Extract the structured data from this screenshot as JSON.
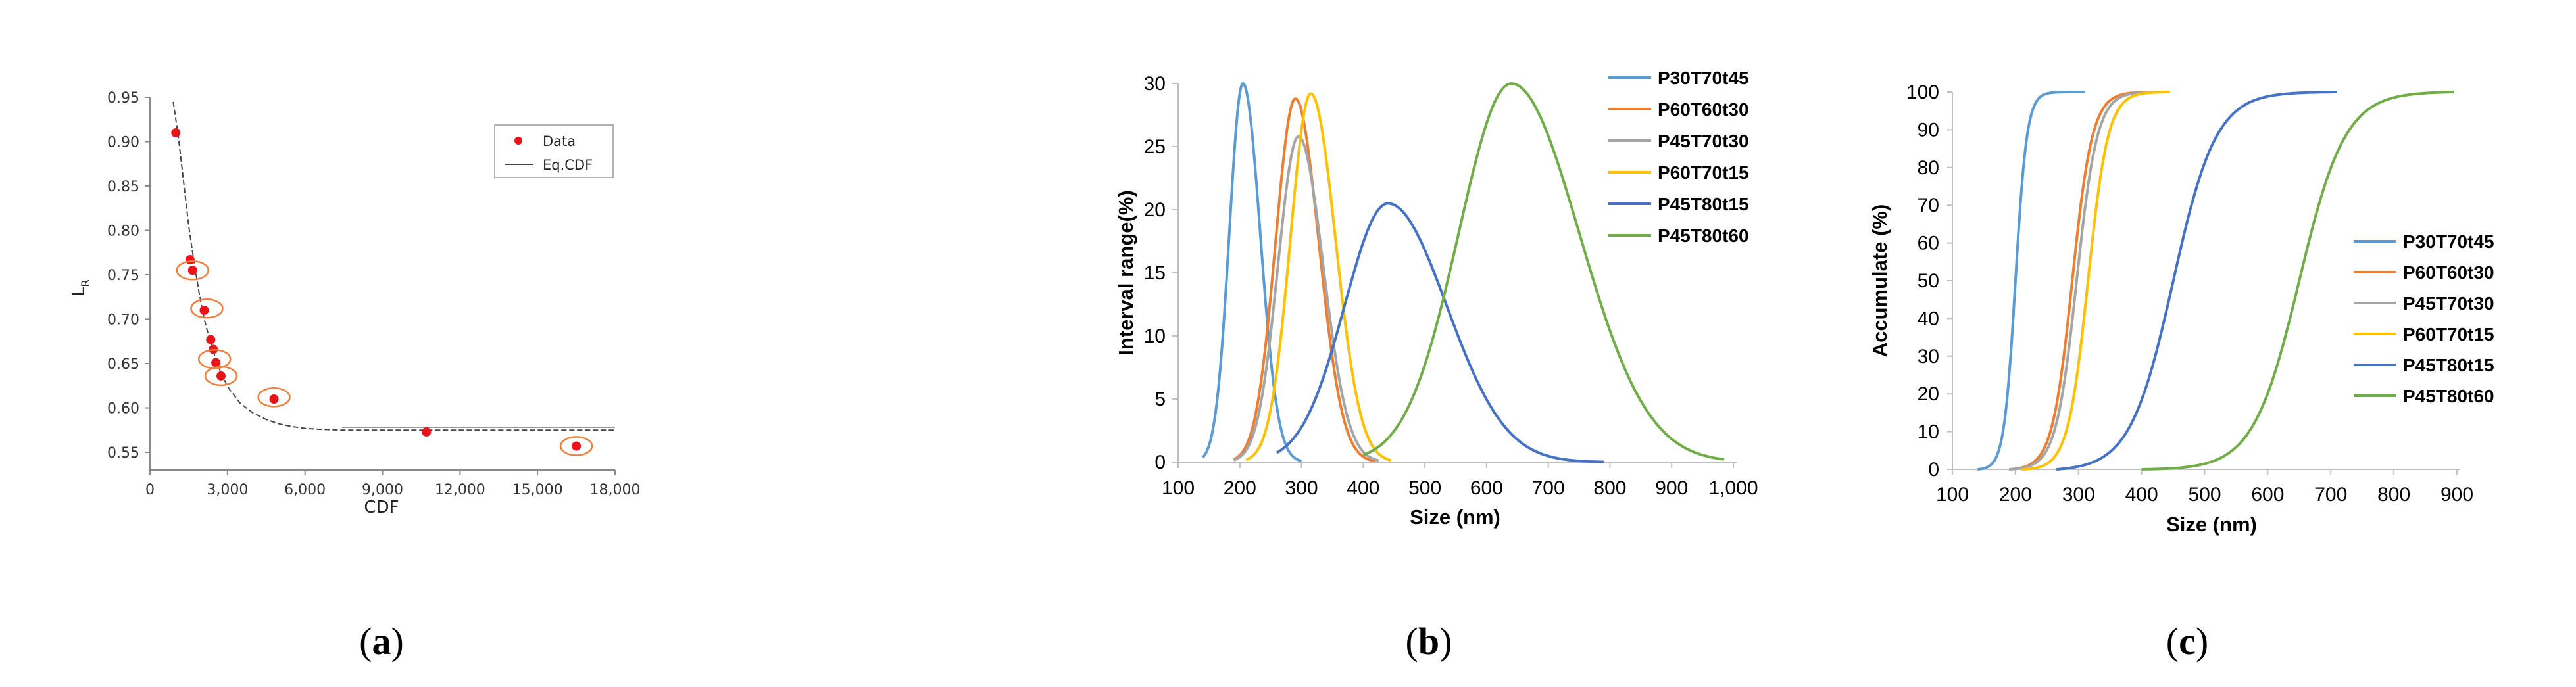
{
  "panels": {
    "a": {
      "label_open": "(",
      "label_letter": "a",
      "label_close": ")"
    },
    "b": {
      "label_open": "(",
      "label_letter": "b",
      "label_close": ")"
    },
    "c": {
      "label_open": "(",
      "label_letter": "c",
      "label_close": ")"
    }
  },
  "chart_data": [
    {
      "id": "a",
      "type": "scatter",
      "title": "",
      "xlabel": "CDF",
      "ylabel": "L",
      "ylabel_sub": "R",
      "xlim": [
        0,
        18000
      ],
      "ylim": [
        0.53,
        0.95
      ],
      "xticks": [
        0,
        3000,
        6000,
        9000,
        12000,
        15000,
        18000
      ],
      "xtick_labels": [
        "0",
        "3,000",
        "6,000",
        "9,000",
        "12,000",
        "15,000",
        "18,000"
      ],
      "yticks": [
        0.55,
        0.6,
        0.65,
        0.7,
        0.75,
        0.8,
        0.85,
        0.9,
        0.95
      ],
      "ytick_labels": [
        "0.55",
        "0.60",
        "0.65",
        "0.70",
        "0.75",
        "0.80",
        "0.85",
        "0.90",
        "0.95"
      ],
      "legend": [
        "Data",
        "Eq.CDF"
      ],
      "legend_position": "top-right",
      "colors": {
        "points": "#e8141a",
        "fit": "#444444",
        "circles": "#f07f3c",
        "axis": "#8a8a8a"
      },
      "points": [
        {
          "x": 1000,
          "y": 0.91
        },
        {
          "x": 1550,
          "y": 0.767
        },
        {
          "x": 1650,
          "y": 0.755
        },
        {
          "x": 2100,
          "y": 0.71
        },
        {
          "x": 2350,
          "y": 0.677
        },
        {
          "x": 2450,
          "y": 0.666
        },
        {
          "x": 2550,
          "y": 0.651
        },
        {
          "x": 2750,
          "y": 0.636
        },
        {
          "x": 4800,
          "y": 0.61
        },
        {
          "x": 10700,
          "y": 0.573
        },
        {
          "x": 16500,
          "y": 0.557
        }
      ],
      "circled": [
        {
          "x": 1650,
          "y": 0.755
        },
        {
          "x": 2200,
          "y": 0.712
        },
        {
          "x": 2500,
          "y": 0.655
        },
        {
          "x": 2750,
          "y": 0.636
        },
        {
          "x": 4800,
          "y": 0.612
        },
        {
          "x": 16500,
          "y": 0.557
        }
      ],
      "fit": {
        "x": [
          900,
          1100,
          1300,
          1500,
          1700,
          1900,
          2100,
          2400,
          2700,
          3000,
          3500,
          4000,
          4500,
          5000,
          5500,
          6000,
          6500,
          7000,
          7500,
          8000,
          9000,
          10000,
          12000,
          14000,
          16000,
          18000
        ],
        "y": [
          0.945,
          0.905,
          0.855,
          0.805,
          0.765,
          0.73,
          0.7,
          0.667,
          0.643,
          0.624,
          0.605,
          0.594,
          0.587,
          0.582,
          0.579,
          0.577,
          0.576,
          0.5755,
          0.575,
          0.575,
          0.575,
          0.575,
          0.575,
          0.575,
          0.575,
          0.575
        ]
      }
    },
    {
      "id": "b",
      "type": "line",
      "title": "",
      "xlabel": "Size (nm)",
      "ylabel": "Interval range(%)",
      "xlim": [
        100,
        1000
      ],
      "ylim": [
        0,
        30
      ],
      "xticks": [
        100,
        200,
        300,
        400,
        500,
        600,
        700,
        800,
        900,
        1000
      ],
      "xtick_labels": [
        "100",
        "200",
        "300",
        "400",
        "500",
        "600",
        "700",
        "800",
        "900",
        "1,000"
      ],
      "yticks": [
        0,
        5,
        10,
        15,
        20,
        25,
        30
      ],
      "ytick_labels": [
        "0",
        "5",
        "10",
        "15",
        "20",
        "25",
        "30"
      ],
      "legend_position": "top-right",
      "series": [
        {
          "name": "P30T70t45",
          "color": "#5b9bd5",
          "peak_x": 205,
          "peak_y": 30,
          "sigma_left": 22,
          "sigma_right": 28,
          "x_start": 140,
          "x_end": 300
        },
        {
          "name": "P60T60t30",
          "color": "#ed7d31",
          "peak_x": 290,
          "peak_y": 28.8,
          "sigma_left": 32,
          "sigma_right": 38,
          "x_start": 190,
          "x_end": 420
        },
        {
          "name": "P45T70t30",
          "color": "#a5a5a5",
          "peak_x": 295,
          "peak_y": 25.8,
          "sigma_left": 33,
          "sigma_right": 40,
          "x_start": 190,
          "x_end": 425
        },
        {
          "name": "P60T70t15",
          "color": "#ffc000",
          "peak_x": 315,
          "peak_y": 29.2,
          "sigma_left": 33,
          "sigma_right": 40,
          "x_start": 210,
          "x_end": 445
        },
        {
          "name": "P45T80t15",
          "color": "#4472c4",
          "peak_x": 440,
          "peak_y": 20.5,
          "sigma_left": 70,
          "sigma_right": 95,
          "x_start": 260,
          "x_end": 790
        },
        {
          "name": "P45T80t60",
          "color": "#70ad47",
          "peak_x": 640,
          "peak_y": 30,
          "sigma_left": 85,
          "sigma_right": 110,
          "x_start": 400,
          "x_end": 985
        }
      ]
    },
    {
      "id": "c",
      "type": "line",
      "title": "",
      "xlabel": "Size (nm)",
      "ylabel": "Accumulate (%)",
      "xlim": [
        100,
        900
      ],
      "ylim": [
        0,
        100
      ],
      "xticks": [
        100,
        200,
        300,
        400,
        500,
        600,
        700,
        800,
        900
      ],
      "xtick_labels": [
        "100",
        "200",
        "300",
        "400",
        "500",
        "600",
        "700",
        "800",
        "900"
      ],
      "yticks": [
        0,
        10,
        20,
        30,
        40,
        50,
        60,
        70,
        80,
        90,
        100
      ],
      "ytick_labels": [
        "0",
        "10",
        "20",
        "30",
        "40",
        "50",
        "60",
        "70",
        "80",
        "90",
        "100"
      ],
      "legend_position": "right",
      "series": [
        {
          "name": "P30T70t45",
          "color": "#5b9bd5",
          "mid_x": 200,
          "scale": 20,
          "x_start": 140,
          "x_end": 310
        },
        {
          "name": "P60T60t30",
          "color": "#ed7d31",
          "mid_x": 290,
          "scale": 35,
          "x_start": 190,
          "x_end": 420
        },
        {
          "name": "P45T70t30",
          "color": "#a5a5a5",
          "mid_x": 297,
          "scale": 36,
          "x_start": 190,
          "x_end": 430
        },
        {
          "name": "P60T70t15",
          "color": "#ffc000",
          "mid_x": 315,
          "scale": 35,
          "x_start": 210,
          "x_end": 445
        },
        {
          "name": "P45T80t15",
          "color": "#4472c4",
          "mid_x": 450,
          "scale": 75,
          "x_start": 265,
          "x_end": 710
        },
        {
          "name": "P45T80t60",
          "color": "#70ad47",
          "mid_x": 650,
          "scale": 80,
          "x_start": 400,
          "x_end": 895
        }
      ]
    }
  ]
}
